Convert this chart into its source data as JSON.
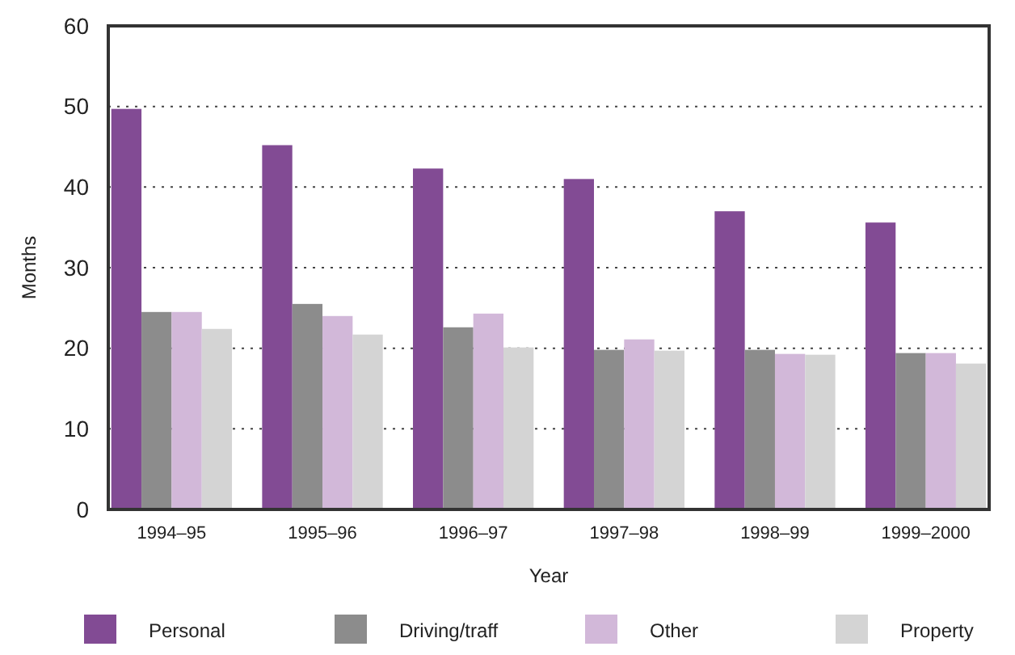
{
  "chart_data": {
    "type": "bar",
    "xlabel": "Year",
    "ylabel": "Months",
    "categories": [
      "1994–95",
      "1995–96",
      "1996–97",
      "1997–98",
      "1998–99",
      "1999–2000"
    ],
    "series": [
      {
        "name": "Personal",
        "color": "#824b94",
        "values": [
          49.7,
          45.2,
          42.3,
          41,
          37,
          35.6
        ]
      },
      {
        "name": "Driving/traff",
        "color": "#8c8c8c",
        "values": [
          24.5,
          25.5,
          22.6,
          19.8,
          19.8,
          19.4
        ]
      },
      {
        "name": "Other",
        "color": "#d2b8d9",
        "values": [
          24.5,
          24,
          24.3,
          21.1,
          19.3,
          19.4
        ]
      },
      {
        "name": "Property",
        "color": "#d4d4d4",
        "values": [
          22.4,
          21.7,
          20.1,
          19.7,
          19.2,
          18.1
        ]
      }
    ],
    "ylim": [
      0,
      60
    ],
    "yticks": [
      0,
      10,
      20,
      30,
      40,
      50,
      60
    ],
    "grid": "y",
    "legend": "bottom"
  }
}
